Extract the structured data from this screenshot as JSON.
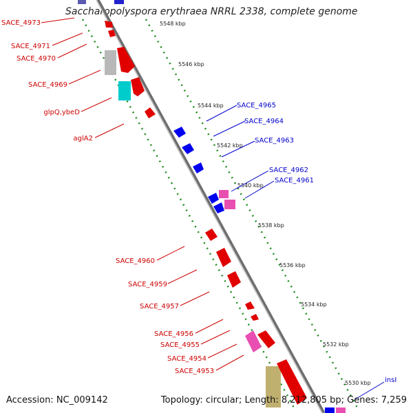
{
  "title": "Saccharopolyspora erythraea NRRL 2338, complete genome",
  "footer": {
    "accession": "Accession: NC_009142",
    "topology": "Topology: circular; Length: 8,212,805 bp; Genes: 7,259"
  },
  "kbp_labels": [
    "5548 kbp",
    "5546 kbp",
    "5544 kbp",
    "5542 kbp",
    "5540 kbp",
    "5538 kbp",
    "5536 kbp",
    "5534 kbp",
    "5532 kbp",
    "5530 kbp"
  ],
  "left_genes": [
    "SACE_4973",
    "SACE_4971",
    "SACE_4970",
    "SACE_4969",
    "glpQ,ybeD",
    "aglA2",
    "SACE_4960",
    "SACE_4959",
    "SACE_4957",
    "SACE_4956",
    "SACE_4955",
    "SACE_4954",
    "SACE_4953"
  ],
  "right_genes": [
    "SACE_4965",
    "SACE_4964",
    "SACE_4963",
    "SACE_4962",
    "SACE_4961",
    "insI"
  ],
  "colors": {
    "forward_label": "#cc0000",
    "reverse_label": "#0000cc",
    "ruler_dots": "#1a8a1a"
  }
}
